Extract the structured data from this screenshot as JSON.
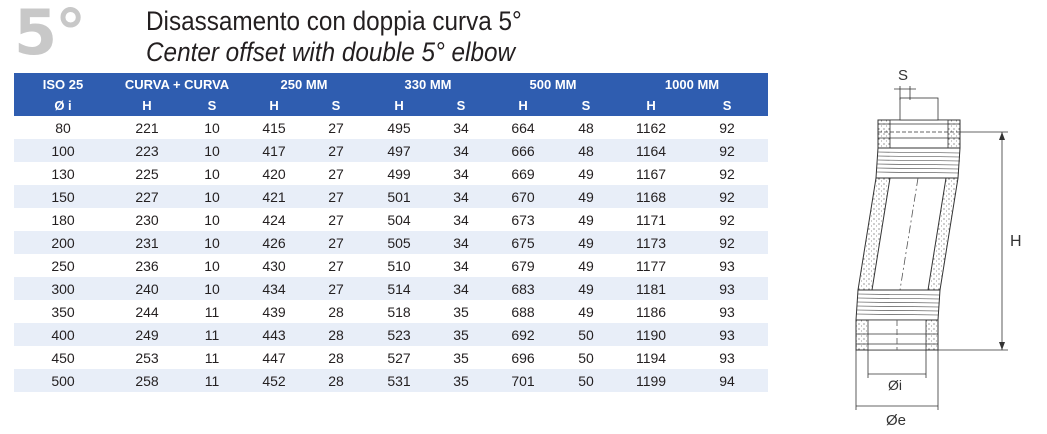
{
  "header": {
    "big_number": "5°",
    "title_it": "Disassamento con doppia curva 5°",
    "title_en": "Center offset with double 5° elbow"
  },
  "table": {
    "group_headers": [
      "ISO 25",
      "CURVA + CURVA",
      "250 MM",
      "330 MM",
      "500 MM",
      "1000 MM"
    ],
    "sub_headers": [
      "Ø i",
      "H",
      "S",
      "H",
      "S",
      "H",
      "S",
      "H",
      "S",
      "H",
      "S"
    ],
    "rows": [
      [
        "80",
        "221",
        "10",
        "415",
        "27",
        "495",
        "34",
        "664",
        "48",
        "1162",
        "92"
      ],
      [
        "100",
        "223",
        "10",
        "417",
        "27",
        "497",
        "34",
        "666",
        "48",
        "1164",
        "92"
      ],
      [
        "130",
        "225",
        "10",
        "420",
        "27",
        "499",
        "34",
        "669",
        "49",
        "1167",
        "92"
      ],
      [
        "150",
        "227",
        "10",
        "421",
        "27",
        "501",
        "34",
        "670",
        "49",
        "1168",
        "92"
      ],
      [
        "180",
        "230",
        "10",
        "424",
        "27",
        "504",
        "34",
        "673",
        "49",
        "1171",
        "92"
      ],
      [
        "200",
        "231",
        "10",
        "426",
        "27",
        "505",
        "34",
        "675",
        "49",
        "1173",
        "92"
      ],
      [
        "250",
        "236",
        "10",
        "430",
        "27",
        "510",
        "34",
        "679",
        "49",
        "1177",
        "93"
      ],
      [
        "300",
        "240",
        "10",
        "434",
        "27",
        "514",
        "34",
        "683",
        "49",
        "1181",
        "93"
      ],
      [
        "350",
        "244",
        "11",
        "439",
        "28",
        "518",
        "35",
        "688",
        "49",
        "1186",
        "93"
      ],
      [
        "400",
        "249",
        "11",
        "443",
        "28",
        "523",
        "35",
        "692",
        "50",
        "1190",
        "93"
      ],
      [
        "450",
        "253",
        "11",
        "447",
        "28",
        "527",
        "35",
        "696",
        "50",
        "1194",
        "93"
      ],
      [
        "500",
        "258",
        "11",
        "452",
        "28",
        "531",
        "35",
        "701",
        "50",
        "1199",
        "94"
      ]
    ]
  },
  "diagram": {
    "label_s": "S",
    "label_h": "H",
    "label_di": "Øi",
    "label_de": "Øe"
  },
  "colors": {
    "header_bg": "#2f5db0",
    "stripe_bg": "#e8eef8",
    "big_number": "#c8c8c8"
  }
}
